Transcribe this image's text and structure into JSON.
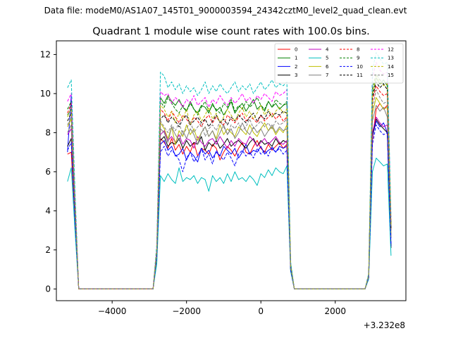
{
  "chart_data": {
    "type": "line",
    "suptitle": "Data file: modeM0/AS1A07_145T01_9000003594_24342cztM0_level2_quad_clean.evt",
    "title": "Quadrant 1 module wise count rates with 100.0s bins.",
    "xlabel": "",
    "ylabel": "",
    "x_offset_label": "+3.232e8",
    "xlim": [
      -5500,
      3900
    ],
    "ylim": [
      -0.6,
      12.7
    ],
    "xticks": [
      -4000,
      -2000,
      0,
      2000
    ],
    "xtick_labels": [
      "−4000",
      "−2000",
      "0",
      "2000"
    ],
    "yticks": [
      0,
      2,
      4,
      6,
      8,
      10,
      12
    ],
    "ytick_labels": [
      "0",
      "2",
      "4",
      "6",
      "8",
      "10",
      "12"
    ],
    "grid": false,
    "legend_position": "top-right",
    "note": "Orbit segments: x from -5200 to -4900 (step 100), -4900 to -2900 zero, -2900 to 800 (step 100), 900 to 2800 zero, 2900 to 3500. Each series lists y values at those x positions.",
    "segments": {
      "a": {
        "x": [
          -5200,
          -5100,
          -5000,
          -4900
        ]
      },
      "zero1": {
        "x": [
          -4900,
          -2900
        ],
        "y": 0
      },
      "b": {
        "x_start": -2900,
        "x_step": 100,
        "count": 38
      },
      "zero2": {
        "x": [
          900,
          2800
        ],
        "y": 0
      },
      "c": {
        "x": [
          2800,
          2900,
          3000,
          3100,
          3200,
          3300,
          3400,
          3500
        ]
      }
    },
    "series": [
      {
        "name": "0",
        "color": "#ff0000",
        "dash": "solid",
        "a": [
          6.9,
          7.0,
          3.5,
          0.0
        ],
        "b": [
          0.0,
          1.6,
          7.7,
          7.5,
          7.2,
          7.7,
          7.1,
          7.4,
          6.9,
          7.3,
          7.0,
          7.5,
          6.8,
          7.2,
          7.1,
          6.9,
          7.4,
          7.2,
          6.6,
          7.0,
          7.3,
          7.1,
          6.8,
          7.2,
          7.5,
          7.0,
          6.9,
          7.3,
          7.6,
          7.2,
          7.0,
          7.4,
          7.1,
          7.3,
          7.5,
          7.2,
          7.4,
          1.0
        ],
        "c": [
          0.0,
          0.6,
          7.6,
          9.2,
          9.5,
          9.2,
          9.4,
          3.0
        ]
      },
      {
        "name": "1",
        "color": "#008000",
        "dash": "solid",
        "a": [
          8.9,
          9.2,
          4.4,
          0.0
        ],
        "b": [
          0.0,
          2.0,
          9.8,
          9.5,
          9.9,
          9.6,
          9.4,
          9.7,
          9.3,
          9.1,
          9.6,
          9.2,
          9.0,
          9.4,
          9.3,
          9.0,
          9.5,
          9.1,
          9.3,
          8.9,
          9.2,
          9.6,
          9.0,
          9.3,
          9.5,
          9.1,
          9.4,
          9.7,
          9.2,
          9.4,
          9.1,
          9.6,
          9.3,
          9.5,
          9.2,
          9.4,
          9.5,
          1.2
        ],
        "c": [
          0.0,
          0.7,
          10.0,
          10.8,
          10.5,
          10.7,
          10.4,
          3.2
        ]
      },
      {
        "name": "2",
        "color": "#0000ff",
        "dash": "solid",
        "a": [
          7.0,
          9.9,
          3.6,
          0.0
        ],
        "b": [
          0.0,
          1.7,
          7.4,
          7.6,
          7.1,
          7.3,
          6.8,
          6.9,
          7.2,
          6.6,
          7.0,
          6.8,
          6.5,
          7.2,
          6.9,
          7.1,
          6.7,
          7.0,
          6.8,
          7.3,
          7.1,
          6.9,
          7.2,
          6.7,
          7.0,
          7.4,
          6.9,
          7.1,
          7.0,
          7.3,
          6.9,
          7.1,
          7.2,
          7.0,
          7.3,
          7.2,
          7.3,
          1.0
        ],
        "c": [
          0.0,
          0.6,
          7.8,
          8.6,
          8.3,
          8.5,
          8.0,
          2.2
        ]
      },
      {
        "name": "3",
        "color": "#000000",
        "dash": "solid",
        "a": [
          7.3,
          7.7,
          3.7,
          0.0
        ],
        "b": [
          0.0,
          1.7,
          7.6,
          7.8,
          7.3,
          7.5,
          7.4,
          7.7,
          7.2,
          7.6,
          7.3,
          7.5,
          7.4,
          7.8,
          7.1,
          7.5,
          7.3,
          7.6,
          7.2,
          7.4,
          7.7,
          7.3,
          7.5,
          7.6,
          7.4,
          7.2,
          7.5,
          7.7,
          7.3,
          7.6,
          7.4,
          7.5,
          7.3,
          7.7,
          7.4,
          7.6,
          7.5,
          1.0
        ],
        "c": [
          0.0,
          0.6,
          7.9,
          8.7,
          8.4,
          8.2,
          8.0,
          2.1
        ]
      },
      {
        "name": "4",
        "color": "#bf00bf",
        "dash": "solid",
        "a": [
          7.9,
          8.2,
          3.9,
          0.0
        ],
        "b": [
          0.0,
          1.8,
          7.9,
          8.1,
          7.6,
          7.8,
          7.5,
          7.9,
          7.4,
          7.7,
          7.6,
          7.2,
          7.8,
          7.5,
          7.3,
          7.6,
          7.7,
          7.4,
          7.8,
          7.5,
          7.2,
          7.6,
          7.3,
          7.7,
          7.5,
          7.4,
          7.8,
          7.6,
          7.3,
          7.5,
          7.7,
          7.4,
          7.6,
          7.8,
          7.5,
          7.4,
          7.6,
          1.1
        ],
        "c": [
          0.0,
          0.6,
          8.0,
          8.8,
          8.5,
          8.3,
          8.4,
          2.6
        ]
      },
      {
        "name": "5",
        "color": "#00bfbf",
        "dash": "solid",
        "a": [
          5.5,
          6.2,
          3.0,
          0.0
        ],
        "b": [
          0.0,
          1.3,
          5.8,
          5.5,
          5.9,
          5.6,
          5.4,
          6.2,
          5.5,
          5.7,
          5.6,
          5.8,
          5.4,
          5.7,
          5.6,
          5.0,
          5.8,
          5.5,
          5.7,
          5.4,
          5.9,
          5.5,
          6.0,
          5.6,
          5.7,
          5.5,
          5.8,
          5.6,
          5.3,
          5.9,
          5.7,
          6.1,
          5.8,
          6.2,
          6.0,
          5.9,
          6.3,
          0.9
        ],
        "c": [
          0.0,
          0.5,
          6.0,
          6.7,
          6.5,
          6.3,
          6.4,
          1.7
        ]
      },
      {
        "name": "6",
        "color": "#bfbf00",
        "dash": "solid",
        "a": [
          8.3,
          8.7,
          4.1,
          0.0
        ],
        "b": [
          0.0,
          1.9,
          8.5,
          8.2,
          7.7,
          8.3,
          7.4,
          8.1,
          7.8,
          8.4,
          7.9,
          8.2,
          7.6,
          8.0,
          8.3,
          7.8,
          8.1,
          7.7,
          8.4,
          7.9,
          8.2,
          8.0,
          7.8,
          8.3,
          8.1,
          7.9,
          8.4,
          8.0,
          7.8,
          8.2,
          8.5,
          8.1,
          8.3,
          7.9,
          8.2,
          8.0,
          8.4,
          1.1
        ],
        "c": [
          0.0,
          0.7,
          9.0,
          9.8,
          9.5,
          9.2,
          9.3,
          2.8
        ]
      },
      {
        "name": "7",
        "color": "#808080",
        "dash": "solid",
        "a": [
          8.0,
          8.4,
          4.0,
          0.0
        ],
        "b": [
          0.0,
          1.8,
          8.2,
          8.0,
          7.5,
          8.3,
          7.9,
          7.6,
          8.1,
          7.7,
          8.2,
          7.9,
          7.4,
          8.0,
          8.3,
          7.8,
          8.1,
          7.6,
          8.0,
          8.4,
          7.9,
          8.2,
          7.7,
          8.0,
          8.5,
          8.1,
          7.9,
          8.3,
          8.0,
          8.2,
          7.8,
          8.1,
          8.4,
          8.0,
          8.3,
          8.1,
          8.2,
          1.1
        ],
        "c": [
          0.0,
          0.6,
          8.6,
          9.4,
          9.1,
          9.3,
          8.8,
          2.6
        ]
      },
      {
        "name": "8",
        "color": "#ff0000",
        "dash": "dashed",
        "a": [
          9.0,
          9.5,
          4.5,
          0.0
        ],
        "b": [
          0.0,
          2.0,
          9.2,
          9.0,
          8.6,
          9.1,
          8.8,
          8.5,
          8.9,
          8.7,
          8.4,
          8.8,
          8.6,
          8.3,
          8.7,
          8.9,
          8.5,
          8.8,
          8.6,
          8.4,
          8.9,
          8.7,
          8.5,
          8.8,
          9.0,
          8.6,
          8.8,
          8.7,
          8.5,
          8.9,
          8.6,
          8.8,
          9.0,
          8.7,
          8.9,
          8.6,
          8.8,
          1.2
        ],
        "c": [
          0.0,
          0.7,
          9.6,
          10.4,
          10.1,
          9.9,
          10.0,
          3.0
        ]
      },
      {
        "name": "9",
        "color": "#008000",
        "dash": "dashed",
        "a": [
          9.2,
          9.6,
          4.6,
          0.0
        ],
        "b": [
          0.0,
          2.1,
          9.6,
          9.3,
          9.8,
          9.5,
          9.2,
          9.0,
          9.4,
          9.1,
          9.5,
          9.2,
          8.9,
          9.3,
          9.6,
          9.1,
          9.4,
          9.2,
          9.0,
          9.5,
          9.3,
          9.7,
          9.1,
          9.4,
          9.2,
          9.6,
          9.3,
          9.5,
          9.8,
          9.4,
          9.2,
          9.6,
          9.3,
          9.7,
          9.5,
          9.4,
          9.6,
          1.3
        ],
        "c": [
          0.0,
          0.7,
          10.3,
          11.0,
          10.7,
          10.5,
          10.6,
          3.4
        ]
      },
      {
        "name": "10",
        "color": "#0000ff",
        "dash": "dashed",
        "a": [
          7.1,
          7.5,
          3.6,
          0.0
        ],
        "b": [
          0.0,
          1.7,
          7.0,
          7.3,
          6.8,
          7.1,
          6.9,
          6.6,
          6.0,
          6.7,
          7.0,
          6.5,
          6.8,
          7.2,
          6.6,
          6.9,
          6.4,
          7.1,
          6.8,
          6.6,
          7.0,
          6.7,
          6.3,
          6.9,
          7.1,
          6.8,
          7.0,
          6.7,
          7.2,
          6.9,
          7.1,
          6.8,
          7.3,
          7.0,
          7.2,
          6.9,
          7.1,
          1.0
        ],
        "c": [
          0.0,
          0.6,
          7.4,
          8.4,
          8.1,
          7.9,
          8.0,
          2.2
        ]
      },
      {
        "name": "11",
        "color": "#000000",
        "dash": "dashed",
        "a": [
          8.6,
          9.0,
          4.3,
          0.0
        ],
        "b": [
          0.0,
          1.9,
          8.7,
          8.9,
          8.5,
          8.8,
          8.6,
          8.3,
          8.7,
          8.9,
          8.4,
          8.6,
          8.8,
          8.5,
          8.7,
          8.3,
          8.6,
          8.9,
          8.5,
          8.7,
          8.4,
          8.8,
          8.6,
          8.9,
          8.7,
          8.5,
          8.8,
          9.0,
          8.6,
          8.9,
          8.7,
          9.1,
          8.8,
          9.0,
          8.9,
          9.1,
          9.0,
          1.2
        ],
        "c": [
          0.0,
          0.7,
          9.8,
          10.6,
          10.3,
          10.5,
          10.2,
          3.1
        ]
      },
      {
        "name": "12",
        "color": "#ff00ff",
        "dash": "dashed",
        "a": [
          9.6,
          10.0,
          4.8,
          0.0
        ],
        "b": [
          0.0,
          2.1,
          10.1,
          9.9,
          10.0,
          9.5,
          9.8,
          9.6,
          9.3,
          9.7,
          9.5,
          9.9,
          9.4,
          9.6,
          9.8,
          9.3,
          9.7,
          9.5,
          9.9,
          9.6,
          9.4,
          9.8,
          9.5,
          9.7,
          10.0,
          9.6,
          9.8,
          9.5,
          9.9,
          9.7,
          10.0,
          9.8,
          9.6,
          10.1,
          9.9,
          10.0,
          10.2,
          1.3
        ],
        "c": [
          0.0,
          0.7,
          10.8,
          11.6,
          11.2,
          11.0,
          11.1,
          3.5
        ]
      },
      {
        "name": "13",
        "color": "#00bfbf",
        "dash": "dashed",
        "a": [
          10.3,
          10.7,
          5.1,
          0.0
        ],
        "b": [
          0.0,
          2.3,
          11.1,
          10.9,
          10.3,
          10.6,
          10.2,
          10.5,
          10.0,
          10.4,
          10.1,
          10.3,
          9.9,
          10.2,
          10.6,
          10.0,
          10.4,
          10.1,
          10.5,
          10.2,
          10.0,
          10.3,
          10.6,
          10.1,
          10.4,
          10.2,
          10.5,
          10.0,
          10.3,
          10.6,
          10.2,
          10.4,
          10.7,
          10.3,
          10.5,
          10.4,
          10.6,
          1.4
        ],
        "c": [
          0.0,
          0.8,
          11.2,
          12.1,
          11.8,
          11.5,
          11.6,
          3.7
        ]
      },
      {
        "name": "14",
        "color": "#bfbf00",
        "dash": "dashed",
        "a": [
          8.8,
          9.3,
          4.4,
          0.0
        ],
        "b": [
          0.0,
          2.0,
          9.4,
          9.2,
          8.8,
          9.1,
          8.5,
          9.0,
          8.7,
          9.2,
          8.4,
          8.9,
          9.1,
          8.6,
          8.9,
          9.3,
          8.7,
          9.0,
          8.5,
          8.8,
          9.2,
          8.9,
          8.6,
          9.0,
          9.3,
          8.8,
          9.1,
          8.7,
          9.0,
          9.4,
          8.9,
          9.2,
          8.8,
          9.1,
          9.3,
          9.0,
          9.2,
          1.2
        ],
        "c": [
          0.0,
          0.7,
          10.0,
          10.9,
          10.6,
          10.4,
          10.5,
          3.2
        ]
      },
      {
        "name": "15",
        "color": "#808080",
        "dash": "dashed",
        "a": [
          8.4,
          8.8,
          4.2,
          0.0
        ],
        "b": [
          0.0,
          1.9,
          8.6,
          8.3,
          8.0,
          8.4,
          8.1,
          8.5,
          7.9,
          8.2,
          8.6,
          8.0,
          8.3,
          8.5,
          7.8,
          8.2,
          8.4,
          8.1,
          8.6,
          8.3,
          7.9,
          8.4,
          8.2,
          8.5,
          8.1,
          8.3,
          8.7,
          8.2,
          8.4,
          8.6,
          8.3,
          8.5,
          8.2,
          8.6,
          8.4,
          8.5,
          8.7,
          1.2
        ],
        "c": [
          0.0,
          0.7,
          9.2,
          10.2,
          9.8,
          9.5,
          9.6,
          3.0
        ]
      }
    ]
  }
}
